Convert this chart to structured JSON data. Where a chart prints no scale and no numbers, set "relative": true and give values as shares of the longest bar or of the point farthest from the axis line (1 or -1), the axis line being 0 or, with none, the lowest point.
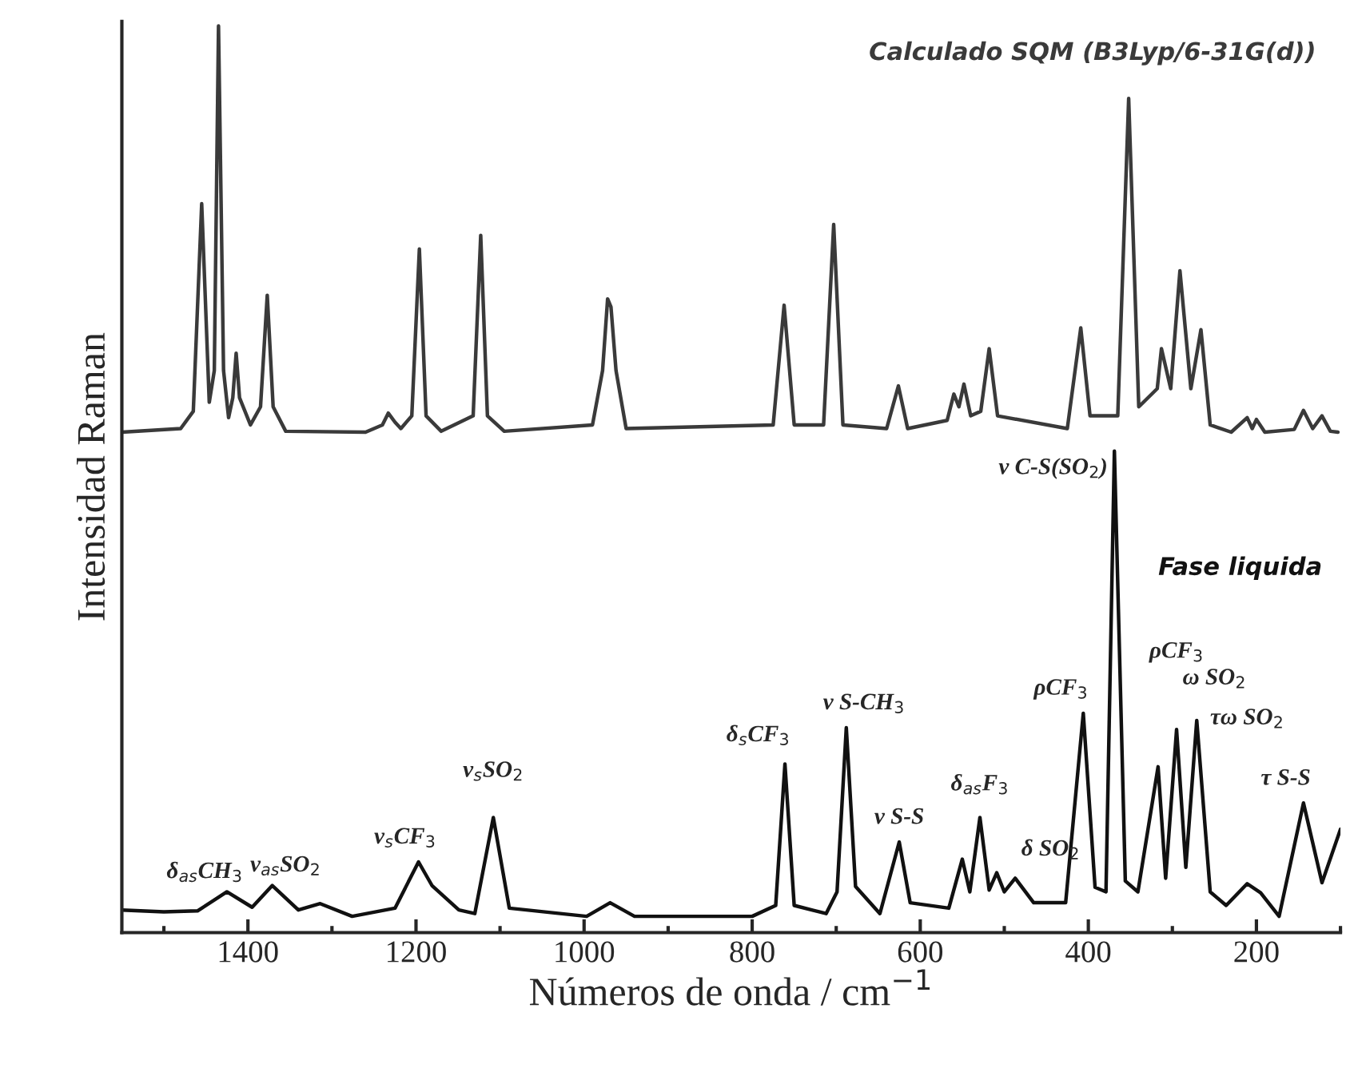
{
  "chart_data": {
    "type": "line",
    "relative": true,
    "xlabel": "Números de onda / cm$^{−1}$",
    "ylabel": "Intensidad Raman",
    "xlim": [
      1550,
      100
    ],
    "xticks": [
      {
        "value": 1500,
        "label": null
      },
      1400,
      {
        "value": 1300,
        "label": null
      },
      1200,
      {
        "value": 1100,
        "label": null
      },
      1000,
      {
        "value": 900,
        "label": null
      },
      800,
      {
        "value": 700,
        "label": null
      },
      600,
      {
        "value": 500,
        "label": null
      },
      400,
      {
        "value": 300,
        "label": null
      },
      200,
      {
        "value": 100,
        "label": null
      }
    ],
    "tick_labels": "x",
    "legend": false,
    "marker": "none",
    "line_style": "solid",
    "series": [
      {
        "name": "Calculado SQM (B3Lyp/6-31G(d))",
        "color": "#3a3a3a",
        "x": [
          1550,
          1480,
          1465,
          1455,
          1446,
          1440,
          1435,
          1429,
          1423,
          1418,
          1414,
          1410,
          1397,
          1385,
          1377,
          1370,
          1355,
          1260,
          1240,
          1233,
          1225,
          1218,
          1205,
          1196,
          1188,
          1170,
          1132,
          1123,
          1115,
          1095,
          990,
          978,
          972,
          968,
          962,
          950,
          775,
          762,
          750,
          715,
          703,
          692,
          640,
          626,
          615,
          568,
          560,
          554,
          548,
          540,
          528,
          518,
          508,
          425,
          409,
          398,
          365,
          352,
          340,
          318,
          313,
          302,
          291,
          278,
          266,
          255,
          230,
          211,
          205,
          200,
          190,
          155,
          144,
          133,
          122,
          112,
          103
        ],
        "values": [
          0.552,
          0.556,
          0.575,
          0.804,
          0.585,
          0.62,
          1.0,
          0.62,
          0.568,
          0.59,
          0.639,
          0.59,
          0.56,
          0.58,
          0.703,
          0.58,
          0.553,
          0.552,
          0.56,
          0.573,
          0.563,
          0.556,
          0.57,
          0.754,
          0.57,
          0.553,
          0.57,
          0.769,
          0.57,
          0.553,
          0.56,
          0.62,
          0.699,
          0.69,
          0.62,
          0.556,
          0.56,
          0.692,
          0.56,
          0.56,
          0.781,
          0.56,
          0.556,
          0.603,
          0.556,
          0.565,
          0.594,
          0.58,
          0.605,
          0.57,
          0.575,
          0.644,
          0.57,
          0.556,
          0.667,
          0.57,
          0.57,
          0.92,
          0.58,
          0.6,
          0.644,
          0.6,
          0.73,
          0.6,
          0.665,
          0.56,
          0.552,
          0.568,
          0.556,
          0.566,
          0.552,
          0.555,
          0.576,
          0.556,
          0.57,
          0.553,
          0.552
        ]
      },
      {
        "name": "Fase liquida",
        "color": "#111111",
        "x": [
          1550,
          1500,
          1460,
          1425,
          1395,
          1371,
          1340,
          1314,
          1276,
          1225,
          1197,
          1181,
          1149,
          1130,
          1108,
          1089,
          997,
          969,
          940,
          851,
          800,
          772,
          761,
          750,
          712,
          699,
          688,
          677,
          648,
          625,
          612,
          566,
          550,
          541,
          529,
          518,
          509,
          500,
          487,
          465,
          427,
          406,
          392,
          379,
          369,
          356,
          341,
          317,
          308,
          295,
          284,
          271,
          255,
          236,
          211,
          195,
          173,
          144,
          122,
          100
        ],
        "values": [
          0.025,
          0.023,
          0.024,
          0.045,
          0.028,
          0.052,
          0.025,
          0.032,
          0.018,
          0.027,
          0.078,
          0.052,
          0.025,
          0.021,
          0.127,
          0.027,
          0.018,
          0.033,
          0.018,
          0.018,
          0.018,
          0.03,
          0.186,
          0.03,
          0.021,
          0.045,
          0.226,
          0.051,
          0.021,
          0.1,
          0.033,
          0.027,
          0.081,
          0.045,
          0.127,
          0.047,
          0.066,
          0.045,
          0.06,
          0.033,
          0.033,
          0.242,
          0.05,
          0.045,
          0.531,
          0.057,
          0.045,
          0.183,
          0.06,
          0.224,
          0.072,
          0.234,
          0.045,
          0.03,
          0.054,
          0.044,
          0.018,
          0.143,
          0.055,
          0.114
        ]
      }
    ],
    "annotations": [
      {
        "text": "δ$_{as}$CH$_{3}$",
        "x": 1425,
        "y": 0.045
      },
      {
        "text": "ν$_{as}$SO$_{2}$",
        "x": 1371,
        "y": 0.052
      },
      {
        "text": "ν$_{s}$CF$_{3}$",
        "x": 1197,
        "y": 0.078
      },
      {
        "text": "ν$_{s}$SO$_{2}$",
        "x": 1108,
        "y": 0.127
      },
      {
        "text": "δ$_{s}$CF$_{3}$",
        "x": 761,
        "y": 0.186
      },
      {
        "text": "ν S-CH$_{3}$",
        "x": 688,
        "y": 0.226
      },
      {
        "text": "ν S-S",
        "x": 625,
        "y": 0.1
      },
      {
        "text": "δ$_{as}$F$_{3}$",
        "x": 529,
        "y": 0.127
      },
      {
        "text": "δ SO$_{2}$",
        "x": 487,
        "y": 0.06
      },
      {
        "text": "ρCF$_{3}$",
        "x": 406,
        "y": 0.242
      },
      {
        "text": "ν C-S(SO$_{2}$)",
        "x": 369,
        "y": 0.531
      },
      {
        "text": "ρCF$_{3}$",
        "x": 295,
        "y": 0.224
      },
      {
        "text": "ω SO$_{2}$",
        "x": 271,
        "y": 0.234
      },
      {
        "text": "τω SO$_{2}$",
        "x": 271,
        "y": 0.234
      },
      {
        "text": "τ S-S",
        "x": 144,
        "y": 0.143
      }
    ]
  }
}
